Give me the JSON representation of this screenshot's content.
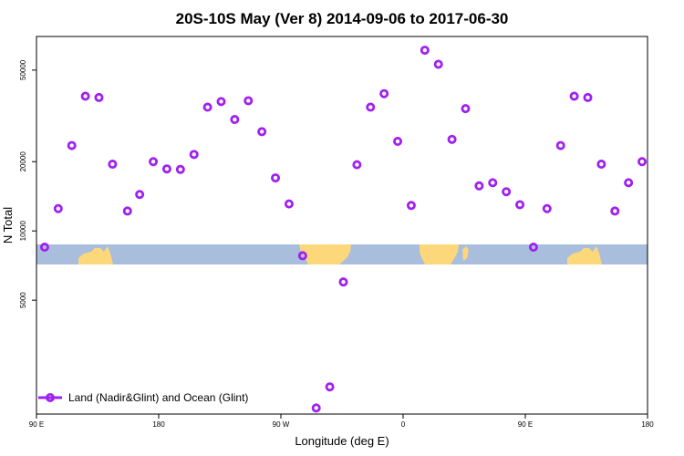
{
  "chart_data": {
    "type": "scatter",
    "title": "20S-10S May (Ver 8)   2014-09-06 to 2017-06-30",
    "xlabel": "Longitude (deg E)",
    "ylabel": "N Total",
    "y_scale": "log",
    "xlim": [
      90,
      540
    ],
    "ylim": [
      1600,
      70000
    ],
    "x_ticks": [
      {
        "value": 90,
        "label": "90 E"
      },
      {
        "value": 180,
        "label": "180"
      },
      {
        "value": 270,
        "label": "90 W"
      },
      {
        "value": 360,
        "label": "0"
      },
      {
        "value": 450,
        "label": "90 E"
      },
      {
        "value": 540,
        "label": "180"
      }
    ],
    "y_ticks": [
      {
        "value": 5000,
        "label": "5000"
      },
      {
        "value": 10000,
        "label": "10000"
      },
      {
        "value": 20000,
        "label": "20000"
      },
      {
        "value": 50000,
        "label": "50000"
      }
    ],
    "series": [
      {
        "name": "Land (Nadir&Glint) and Ocean (Glint)",
        "color": "#a020f0",
        "x": [
          96,
          106,
          116,
          126,
          136,
          146,
          157,
          166,
          176,
          186,
          196,
          206,
          216,
          226,
          236,
          246,
          256,
          266,
          276,
          286,
          296,
          306,
          316,
          326,
          336,
          346,
          356,
          366,
          376,
          386,
          396,
          406,
          416,
          426,
          436,
          446,
          456,
          466,
          476,
          486,
          496,
          506,
          516,
          526,
          536
        ],
        "y": [
          8500,
          12500,
          23500,
          38500,
          38000,
          19500,
          12200,
          14400,
          20000,
          18600,
          18500,
          21500,
          34500,
          36500,
          30500,
          36800,
          27000,
          17000,
          13100,
          7800,
          1700,
          2100,
          6000,
          19400,
          34500,
          39500,
          24500,
          12900,
          61000,
          53000,
          25000,
          34000,
          15700,
          16200,
          14800,
          13000,
          8500,
          12500,
          23500,
          38500,
          38000,
          19500,
          12200,
          16200,
          20000
        ]
      }
    ],
    "legend": {
      "position": "bottom-left",
      "label": "Land (Nadir&Glint) and Ocean (Glint)"
    },
    "grid": false,
    "colors": {
      "ocean_band": "#a9bedd",
      "land": "#fdd87a",
      "marker": "#a020f0"
    }
  }
}
